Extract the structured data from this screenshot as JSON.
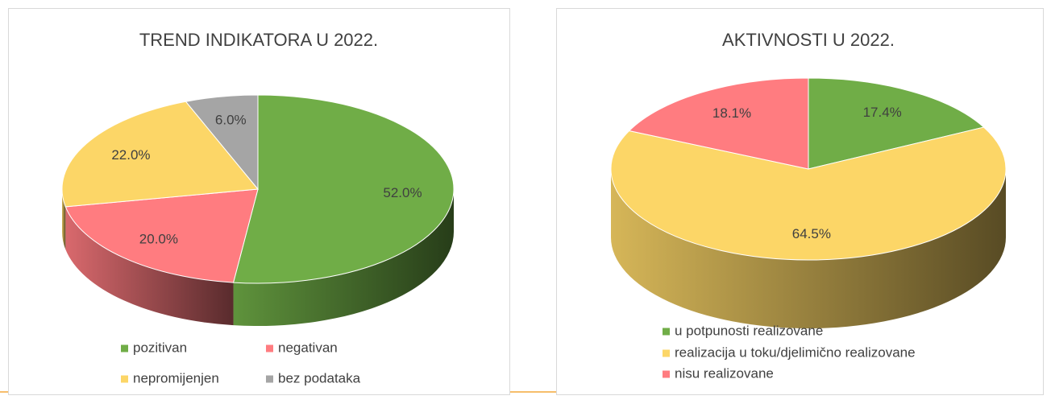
{
  "chart_data": [
    {
      "type": "pie3d",
      "title": "TREND INDIKATORA U 2022.",
      "categories": [
        "pozitivan",
        "negativan",
        "nepromijenjen",
        "bez podataka"
      ],
      "values": [
        52,
        20,
        22,
        6
      ],
      "value_labels": [
        "52.0%",
        "20.0%",
        "22.0%",
        "6.0%"
      ],
      "colors": [
        "#70ad47",
        "#ff7c80",
        "#fcd667",
        "#a5a5a5"
      ],
      "legend": "bottom"
    },
    {
      "type": "pie3d",
      "title": "AKTIVNOSTI U 2022.",
      "categories": [
        "u potpunosti realizovane",
        "realizacija u toku/djelimično realizovane",
        "nisu realizovane"
      ],
      "values": [
        17.4,
        64.5,
        18.1
      ],
      "value_labels": [
        "17.4%",
        "64.5%",
        "18.1%"
      ],
      "colors": [
        "#70ad47",
        "#fcd667",
        "#ff7c80"
      ],
      "legend": "bottom"
    }
  ]
}
